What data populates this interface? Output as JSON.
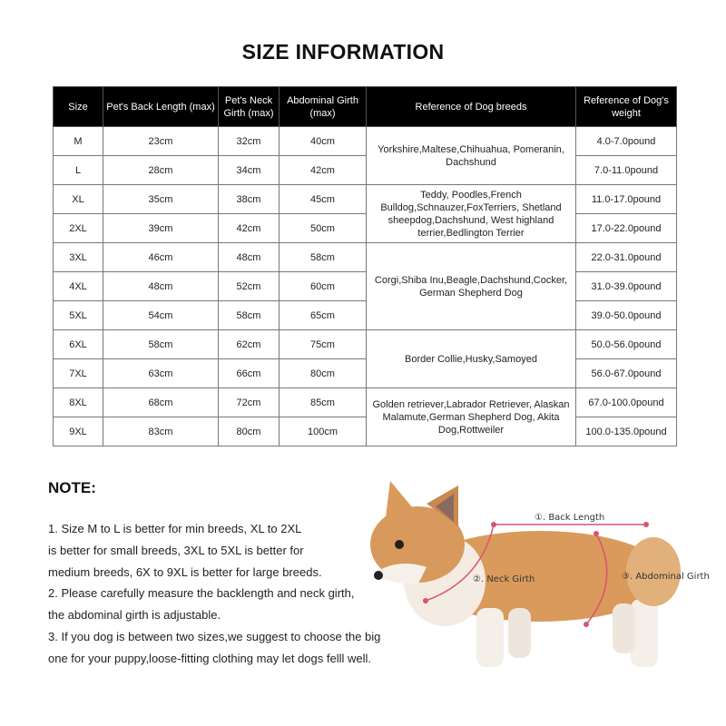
{
  "title": "SIZE INFORMATION",
  "table": {
    "headers": [
      "Size",
      "Pet's Back Length (max)",
      "Pet's Neck Girth (max)",
      "Abdominal Girth (max)",
      "Reference of  Dog breeds",
      "Reference of  Dog's weight"
    ],
    "rows": [
      {
        "size": "M",
        "back": "23cm",
        "neck": "32cm",
        "abdominal": "40cm",
        "weight": "4.0-7.0pound"
      },
      {
        "size": "L",
        "back": "28cm",
        "neck": "34cm",
        "abdominal": "42cm",
        "weight": "7.0-11.0pound"
      },
      {
        "size": "XL",
        "back": "35cm",
        "neck": "38cm",
        "abdominal": "45cm",
        "weight": "11.0-17.0pound"
      },
      {
        "size": "2XL",
        "back": "39cm",
        "neck": "42cm",
        "abdominal": "50cm",
        "weight": "17.0-22.0pound"
      },
      {
        "size": "3XL",
        "back": "46cm",
        "neck": "48cm",
        "abdominal": "58cm",
        "weight": "22.0-31.0pound"
      },
      {
        "size": "4XL",
        "back": "48cm",
        "neck": "52cm",
        "abdominal": "60cm",
        "weight": "31.0-39.0pound"
      },
      {
        "size": "5XL",
        "back": "54cm",
        "neck": "58cm",
        "abdominal": "65cm",
        "weight": "39.0-50.0pound"
      },
      {
        "size": "6XL",
        "back": "58cm",
        "neck": "62cm",
        "abdominal": "75cm",
        "weight": "50.0-56.0pound"
      },
      {
        "size": "7XL",
        "back": "63cm",
        "neck": "66cm",
        "abdominal": "80cm",
        "weight": "56.0-67.0pound"
      },
      {
        "size": "8XL",
        "back": "68cm",
        "neck": "72cm",
        "abdominal": "85cm",
        "weight": "67.0-100.0pound"
      },
      {
        "size": "9XL",
        "back": "83cm",
        "neck": "80cm",
        "abdominal": "100cm",
        "weight": "100.0-135.0pound"
      }
    ],
    "breeds": [
      "Yorkshire,Maltese,Chihuahua, Pomeranin, Dachshund",
      "Teddy, Poodles,French Bulldog,Schnauzer,FoxTerriers, Shetland sheepdog,Dachshund, West highland terrier,Bedlington Terrier",
      "Corgi,Shiba Inu,Beagle,Dachshund,Cocker, German Shepherd Dog",
      "Border Collie,Husky,Samoyed",
      "Golden retriever,Labrador Retriever, Alaskan Malamute,German Shepherd Dog, Akita Dog,Rottweiler"
    ]
  },
  "note": {
    "heading": "NOTE:",
    "lines": [
      "1. Size M to L is better for min breeds, XL to 2XL",
      "is better for small breeds, 3XL to 5XL is better for",
      "medium breeds, 6X to 9XL is better for large breeds.",
      "2. Please carefully measure the backlength and neck girth,",
      "the abdominal girth is adjustable.",
      "3. If you dog is between two sizes,we suggest to choose the big",
      "one for your puppy,loose-fitting clothing may let dogs felll well."
    ]
  },
  "diagram": {
    "back_length": "①. Back Length",
    "neck_girth": "②. Neck Girth",
    "abdominal_girth": "③. Abdominal Girth",
    "line_color": "#d9546f"
  }
}
